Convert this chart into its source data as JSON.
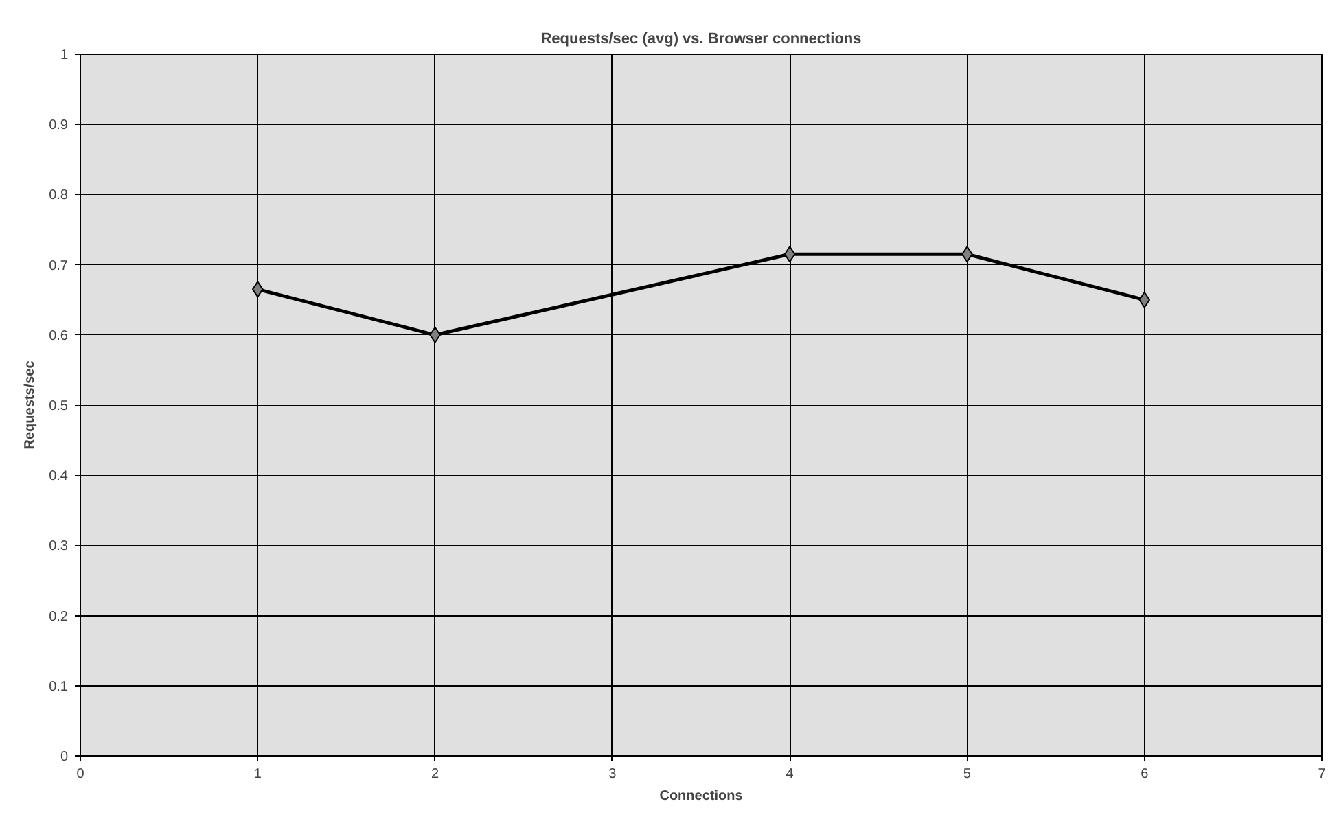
{
  "chart_data": {
    "type": "line",
    "title": "Requests/sec (avg) vs. Browser connections",
    "xlabel": "Connections",
    "ylabel": "Requests/sec",
    "x": [
      1,
      2,
      4,
      5,
      6
    ],
    "series": [
      {
        "color": "#000000",
        "values": [
          0.665,
          0.6,
          0.715,
          0.715,
          0.65
        ]
      }
    ],
    "xlim": [
      0,
      7
    ],
    "xticks": [
      0,
      1,
      2,
      3,
      4,
      5,
      6,
      7
    ],
    "ylim": [
      0,
      1
    ],
    "yticks": [
      0,
      0.1,
      0.2,
      0.3,
      0.4,
      0.5,
      0.6,
      0.7,
      0.8,
      0.9,
      1
    ],
    "grid": true,
    "marker": "diamond",
    "line_style": "solid"
  }
}
